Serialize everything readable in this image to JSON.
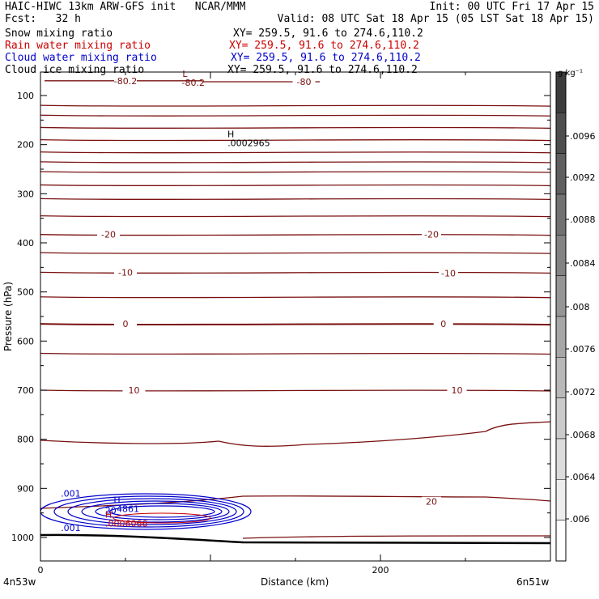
{
  "header": {
    "line1_left": "HAIC-HIWC 13km ARW-GFS init   NCAR/MMM",
    "line1_right": "Init: 00 UTC Fri 17 Apr 15",
    "line2_left": "Fcst:   32 h",
    "line2_right": "Valid: 08 UTC Sat 18 Apr 15 (05 LST Sat 18 Apr 15)",
    "fields": [
      {
        "label": "Snow mixing ratio",
        "xy": "XY= 259.5, 91.6 to 274.6,110.2",
        "color": "#000000"
      },
      {
        "label": "Rain water mixing ratio",
        "xy": "XY= 259.5, 91.6 to 274.6,110.2",
        "color": "#cc0000"
      },
      {
        "label": "Cloud water mixing ratio",
        "xy": "XY= 259.5, 91.6 to 274.6,110.2",
        "color": "#0000cc"
      },
      {
        "label": "Cloud ice mixing ratio",
        "xy": "XY= 259.5, 91.6 to 274.6,110.2",
        "color": "#000000"
      }
    ]
  },
  "chart_data": {
    "type": "line",
    "ylabel": "Pressure (hPa)",
    "xlabel": "Distance (km)",
    "x_start_label": "4n53w",
    "x_end_label": "6n51w",
    "xlim": [
      0,
      300
    ],
    "ylim": [
      1050,
      50
    ],
    "x_ticks": [
      0,
      200
    ],
    "y_ticks": [
      100,
      200,
      300,
      400,
      500,
      600,
      700,
      800,
      900,
      1000
    ],
    "contour_color": "#7a1010",
    "cloud_color": "#0000cc",
    "rain_color": "#cc0000",
    "temperature_contours": [
      {
        "pressure": 70,
        "label": "-80.2",
        "label_x": 50
      },
      {
        "pressure": 72,
        "label": "-80",
        "label_x": 155
      },
      {
        "pressure": 120,
        "label": ""
      },
      {
        "pressure": 140,
        "label": ""
      },
      {
        "pressure": 165,
        "label": ""
      },
      {
        "pressure": 190,
        "label": ""
      },
      {
        "pressure": 215,
        "label": ""
      },
      {
        "pressure": 235,
        "label": ""
      },
      {
        "pressure": 255,
        "label": ""
      },
      {
        "pressure": 282,
        "label": ""
      },
      {
        "pressure": 310,
        "label": ""
      },
      {
        "pressure": 345,
        "label": ""
      },
      {
        "pressure": 383,
        "label": "-20",
        "label_x": 40
      },
      {
        "pressure": 420,
        "label": ""
      },
      {
        "pressure": 460,
        "label": "-10",
        "label_x": 50
      },
      {
        "pressure": 510,
        "label": ""
      },
      {
        "pressure": 565,
        "label": "0",
        "label_x": 50
      },
      {
        "pressure": 625,
        "label": ""
      },
      {
        "pressure": 700,
        "label": "10",
        "label_x": 55
      }
    ],
    "contour_labels": [
      {
        "text": "-20",
        "x": 230,
        "pressure": 383
      },
      {
        "text": "-10",
        "x": 240,
        "pressure": 462
      },
      {
        "text": "0",
        "x": 237,
        "pressure": 565
      },
      {
        "text": "10",
        "x": 245,
        "pressure": 700
      },
      {
        "text": "20",
        "x": 230,
        "pressure": 927
      }
    ],
    "markers": [
      {
        "symbol": "L",
        "value": "-80.2",
        "x": 85,
        "pressure": 62
      },
      {
        "symbol": "H",
        "value": ".0002965",
        "x": 112,
        "pressure": 185
      },
      {
        "symbol": "H",
        "value": ".4861",
        "x": 45,
        "pressure": 930
      },
      {
        "symbol": "H",
        "value": ".0006066",
        "x": 40,
        "pressure": 960
      }
    ],
    "cloud_labels": [
      {
        "text": ".001",
        "x": 12,
        "pressure": 910
      },
      {
        "text": ".001",
        "x": 12,
        "pressure": 980
      },
      {
        "text": "20",
        "x": 38,
        "pressure": 945
      }
    ],
    "colorbar": {
      "unit": "g kg⁻¹",
      "ticks": [
        ".0096",
        ".0092",
        ".0088",
        ".0084",
        ".008",
        ".0076",
        ".0072",
        ".0068",
        ".0064",
        ".006"
      ]
    }
  }
}
